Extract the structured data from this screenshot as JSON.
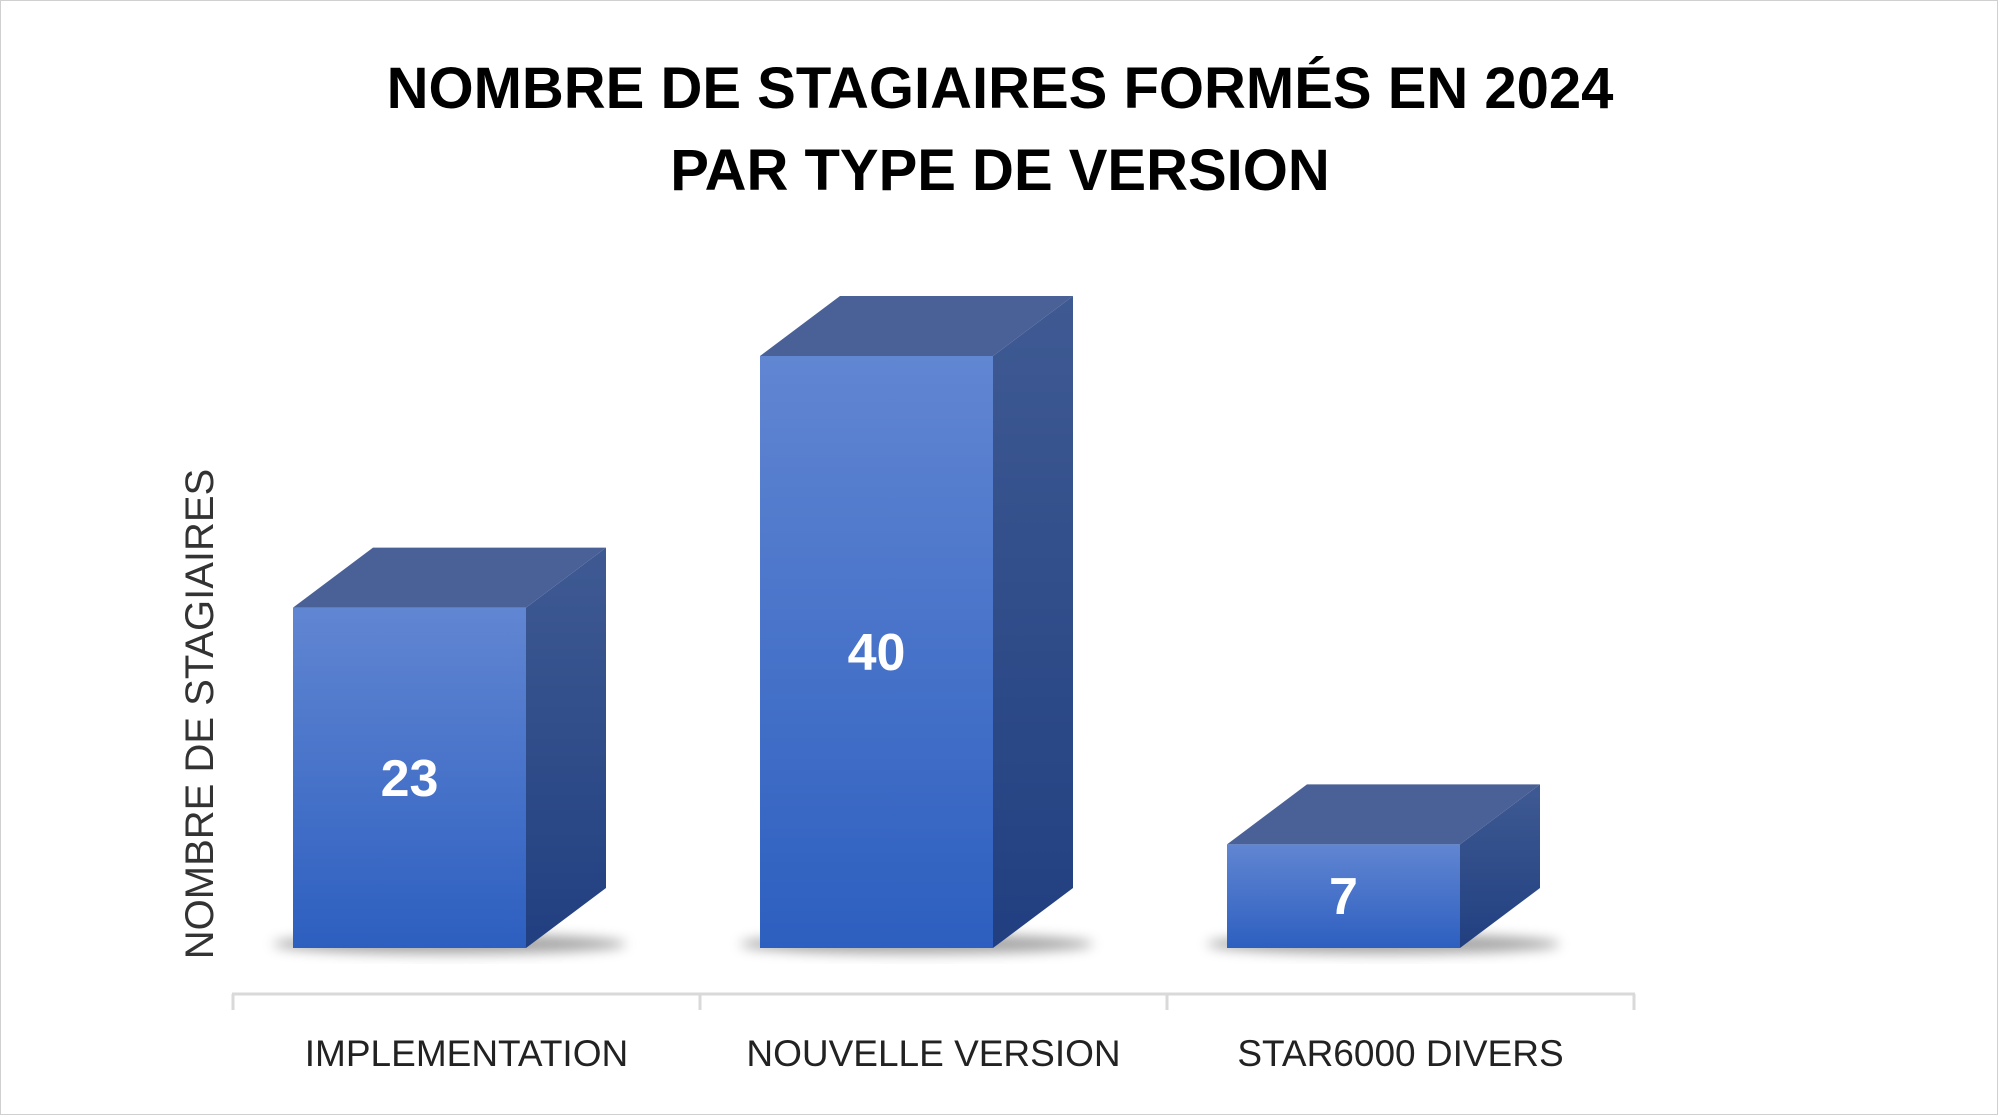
{
  "chart_data": {
    "type": "bar",
    "style": "3d-column",
    "title_lines": [
      "NOMBRE DE STAGIAIRES FORMÉS EN 2024",
      "PAR TYPE DE VERSION"
    ],
    "ylabel": "NOMBRE DE STAGIAIRES",
    "xlabel": "",
    "categories": [
      "IMPLEMENTATION",
      "NOUVELLE VERSION",
      "STAR6000 DIVERS"
    ],
    "values": [
      23,
      40,
      7
    ],
    "data_labels": [
      "23",
      "40",
      "7"
    ],
    "ylim": [
      0,
      40
    ],
    "grid": false,
    "legend": "none",
    "colors": {
      "bar_front_top": "#6186d2",
      "bar_front_bottom": "#2d5fc0",
      "bar_top": "#4a6197",
      "bar_side_top": "#3f5a93",
      "bar_side_bottom": "#213f80",
      "axis": "#d9d9d9"
    }
  }
}
